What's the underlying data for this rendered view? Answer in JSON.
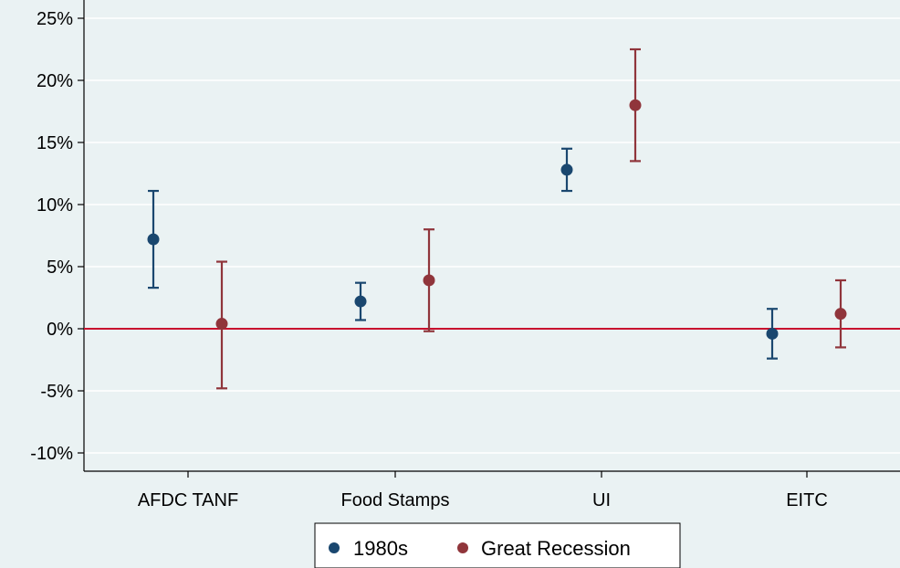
{
  "chart_data": {
    "type": "scatter",
    "subtype": "point-with-error-bars",
    "title": "",
    "xlabel": "",
    "ylabel": "",
    "categories": [
      "AFDC TANF",
      "Food Stamps",
      "UI",
      "EITC"
    ],
    "ylim": [
      -10,
      25
    ],
    "yticks": [
      -10,
      -5,
      0,
      5,
      10,
      15,
      20,
      25
    ],
    "ytick_labels": [
      "-10%",
      "-5%",
      "0%",
      "5%",
      "10%",
      "15%",
      "20%",
      "25%"
    ],
    "grid": true,
    "reference_line": {
      "y": 0,
      "color": "#c8102e"
    },
    "legend_position": "bottom",
    "series": [
      {
        "name": "1980s",
        "color": "#1a476f",
        "values": [
          7.2,
          2.2,
          12.8,
          -0.4
        ],
        "lower": [
          3.3,
          0.7,
          11.1,
          -2.4
        ],
        "upper": [
          11.1,
          3.7,
          14.5,
          1.6
        ]
      },
      {
        "name": "Great Recession",
        "color": "#90353b",
        "values": [
          0.4,
          3.9,
          18.0,
          1.2
        ],
        "lower": [
          -4.8,
          -0.2,
          13.5,
          -1.5
        ],
        "upper": [
          5.4,
          8.0,
          22.5,
          3.9
        ]
      }
    ]
  }
}
